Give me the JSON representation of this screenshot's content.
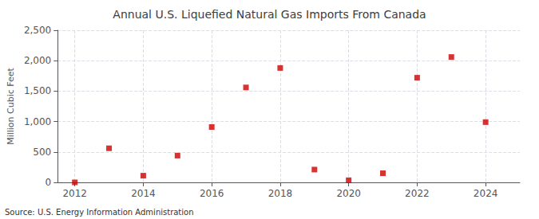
{
  "chart_data": {
    "type": "scatter",
    "title": "Annual U.S. Liquefied Natural Gas Imports From Canada",
    "ylabel": "Million Cubic Feet",
    "source": "Source: U.S. Energy Information Administration",
    "x": [
      2012,
      2013,
      2014,
      2015,
      2016,
      2017,
      2018,
      2019,
      2020,
      2021,
      2022,
      2023,
      2024
    ],
    "values": [
      0,
      560,
      110,
      440,
      910,
      1560,
      1880,
      210,
      35,
      150,
      1720,
      2060,
      990
    ],
    "color": "#cc0000",
    "marker": "square",
    "xlim": [
      2011.5,
      2025
    ],
    "xticks": [
      2012,
      2014,
      2016,
      2018,
      2020,
      2022,
      2024
    ],
    "ylim": [
      0,
      2500
    ],
    "yticks": [
      0,
      500,
      {
        "value": 1000,
        "label": "1,000"
      },
      {
        "value": 1500,
        "label": "1,500"
      },
      {
        "value": 2000,
        "label": "2,000"
      },
      {
        "value": 2500,
        "label": "2,500"
      }
    ],
    "grid": true
  }
}
